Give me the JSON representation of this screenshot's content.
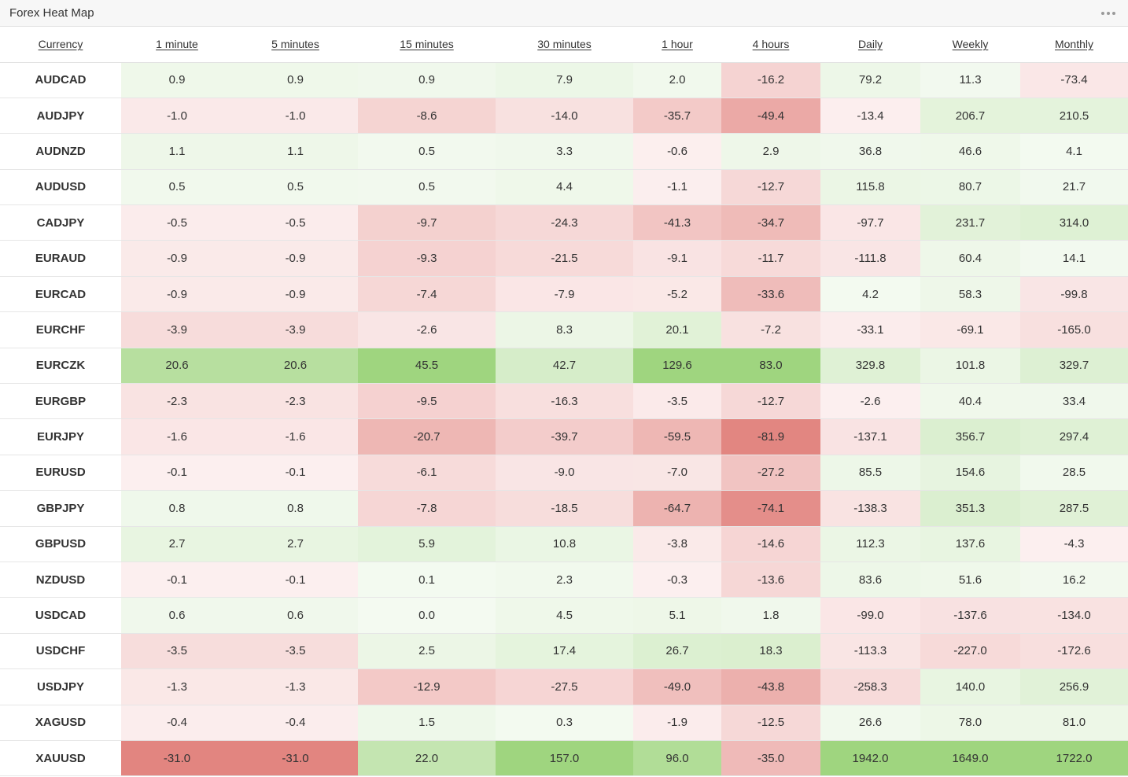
{
  "header": {
    "title": "Forex Heat Map",
    "menu_icon": "more-dots-icon"
  },
  "columns": [
    "Currency",
    "1 minute",
    "5 minutes",
    "15 minutes",
    "30 minutes",
    "1 hour",
    "4 hours",
    "Daily",
    "Weekly",
    "Monthly"
  ],
  "rows": [
    {
      "pair": "AUDCAD",
      "values": [
        0.9,
        0.9,
        0.9,
        7.9,
        2.0,
        -16.2,
        79.2,
        11.3,
        -73.4
      ]
    },
    {
      "pair": "AUDJPY",
      "values": [
        -1.0,
        -1.0,
        -8.6,
        -14.0,
        -35.7,
        -49.4,
        -13.4,
        206.7,
        210.5
      ]
    },
    {
      "pair": "AUDNZD",
      "values": [
        1.1,
        1.1,
        0.5,
        3.3,
        -0.6,
        2.9,
        36.8,
        46.6,
        4.1
      ]
    },
    {
      "pair": "AUDUSD",
      "values": [
        0.5,
        0.5,
        0.5,
        4.4,
        -1.1,
        -12.7,
        115.8,
        80.7,
        21.7
      ]
    },
    {
      "pair": "CADJPY",
      "values": [
        -0.5,
        -0.5,
        -9.7,
        -24.3,
        -41.3,
        -34.7,
        -97.7,
        231.7,
        314.0
      ]
    },
    {
      "pair": "EURAUD",
      "values": [
        -0.9,
        -0.9,
        -9.3,
        -21.5,
        -9.1,
        -11.7,
        -111.8,
        60.4,
        14.1
      ]
    },
    {
      "pair": "EURCAD",
      "values": [
        -0.9,
        -0.9,
        -7.4,
        -7.9,
        -5.2,
        -33.6,
        4.2,
        58.3,
        -99.8
      ]
    },
    {
      "pair": "EURCHF",
      "values": [
        -3.9,
        -3.9,
        -2.6,
        8.3,
        20.1,
        -7.2,
        -33.1,
        -69.1,
        -165.0
      ]
    },
    {
      "pair": "EURCZK",
      "values": [
        20.6,
        20.6,
        45.5,
        42.7,
        129.6,
        83.0,
        329.8,
        101.8,
        329.7
      ]
    },
    {
      "pair": "EURGBP",
      "values": [
        -2.3,
        -2.3,
        -9.5,
        -16.3,
        -3.5,
        -12.7,
        -2.6,
        40.4,
        33.4
      ]
    },
    {
      "pair": "EURJPY",
      "values": [
        -1.6,
        -1.6,
        -20.7,
        -39.7,
        -59.5,
        -81.9,
        -137.1,
        356.7,
        297.4
      ]
    },
    {
      "pair": "EURUSD",
      "values": [
        -0.1,
        -0.1,
        -6.1,
        -9.0,
        -7.0,
        -27.2,
        85.5,
        154.6,
        28.5
      ]
    },
    {
      "pair": "GBPJPY",
      "values": [
        0.8,
        0.8,
        -7.8,
        -18.5,
        -64.7,
        -74.1,
        -138.3,
        351.3,
        287.5
      ]
    },
    {
      "pair": "GBPUSD",
      "values": [
        2.7,
        2.7,
        5.9,
        10.8,
        -3.8,
        -14.6,
        112.3,
        137.6,
        -4.3
      ]
    },
    {
      "pair": "NZDUSD",
      "values": [
        -0.1,
        -0.1,
        0.1,
        2.3,
        -0.3,
        -13.6,
        83.6,
        51.6,
        16.2
      ]
    },
    {
      "pair": "USDCAD",
      "values": [
        0.6,
        0.6,
        0.0,
        4.5,
        5.1,
        1.8,
        -99.0,
        -137.6,
        -134.0
      ]
    },
    {
      "pair": "USDCHF",
      "values": [
        -3.5,
        -3.5,
        2.5,
        17.4,
        26.7,
        18.3,
        -113.3,
        -227.0,
        -172.6
      ]
    },
    {
      "pair": "USDJPY",
      "values": [
        -1.3,
        -1.3,
        -12.9,
        -27.5,
        -49.0,
        -43.8,
        -258.3,
        140.0,
        256.9
      ]
    },
    {
      "pair": "XAGUSD",
      "values": [
        -0.4,
        -0.4,
        1.5,
        0.3,
        -1.9,
        -12.5,
        26.6,
        78.0,
        81.0
      ]
    },
    {
      "pair": "XAUUSD",
      "values": [
        -31.0,
        -31.0,
        22.0,
        157.0,
        96.0,
        -35.0,
        1942.0,
        1649.0,
        1722.0
      ]
    }
  ],
  "colors": {
    "positive_max": "#9fd57f",
    "negative_max": "#e28580",
    "neutral_positive": "#f4faf1",
    "neutral_negative": "#fcf0f0"
  }
}
